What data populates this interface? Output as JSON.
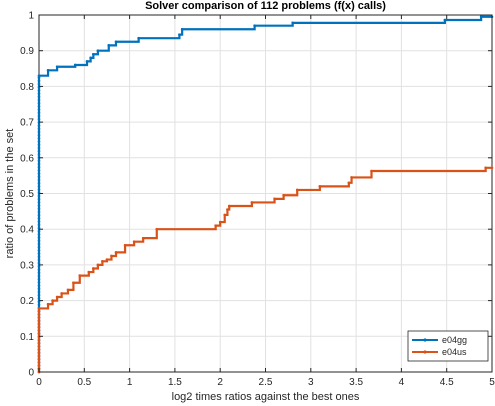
{
  "chart_data": {
    "type": "line",
    "title": "Solver comparison of 112 problems (f(x) calls)",
    "xlabel": "log2 times ratios against the best ones",
    "ylabel": "ratio of problems in the set",
    "xlim": [
      0,
      5
    ],
    "ylim": [
      0,
      1
    ],
    "xticks": [
      "0",
      "0.5",
      "1",
      "1.5",
      "2",
      "2.5",
      "3",
      "3.5",
      "4",
      "4.5",
      "5"
    ],
    "yticks": [
      "0",
      "0.1",
      "0.2",
      "0.3",
      "0.4",
      "0.5",
      "0.6",
      "0.7",
      "0.8",
      "0.9",
      "1"
    ],
    "grid": true,
    "legend_position": "bottom-right",
    "step": true,
    "series": [
      {
        "name": "e04gg",
        "color": "#0072bd",
        "x": [
          0,
          0.1,
          0.2,
          0.4,
          0.53,
          0.57,
          0.6,
          0.65,
          0.77,
          0.85,
          1.1,
          1.55,
          1.58,
          2.38,
          2.8,
          4.48,
          4.88,
          5
        ],
        "y": [
          0.83,
          0.845,
          0.855,
          0.86,
          0.87,
          0.88,
          0.89,
          0.9,
          0.915,
          0.925,
          0.935,
          0.945,
          0.96,
          0.97,
          0.978,
          0.986,
          0.995,
          0.995
        ]
      },
      {
        "name": "e04us",
        "color": "#d95319",
        "x": [
          0,
          0.1,
          0.15,
          0.2,
          0.25,
          0.32,
          0.38,
          0.45,
          0.55,
          0.6,
          0.65,
          0.7,
          0.75,
          0.8,
          0.85,
          0.95,
          1.05,
          1.15,
          1.3,
          1.95,
          2.0,
          2.05,
          2.08,
          2.1,
          2.35,
          2.6,
          2.7,
          2.85,
          3.1,
          3.42,
          3.45,
          3.67,
          4.93,
          5
        ],
        "y": [
          0.178,
          0.19,
          0.2,
          0.21,
          0.22,
          0.23,
          0.25,
          0.27,
          0.28,
          0.29,
          0.3,
          0.31,
          0.315,
          0.325,
          0.335,
          0.355,
          0.365,
          0.375,
          0.4,
          0.41,
          0.42,
          0.44,
          0.455,
          0.465,
          0.475,
          0.485,
          0.495,
          0.51,
          0.52,
          0.53,
          0.545,
          0.563,
          0.572,
          0.572
        ]
      }
    ]
  }
}
